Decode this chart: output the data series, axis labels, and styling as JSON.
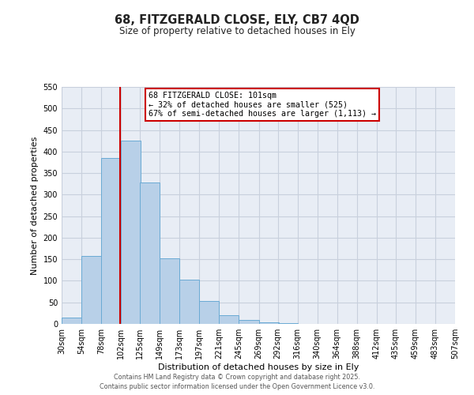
{
  "title_line1": "68, FITZGERALD CLOSE, ELY, CB7 4QD",
  "title_line2": "Size of property relative to detached houses in Ely",
  "bar_left_edges": [
    30,
    54,
    78,
    102,
    125,
    149,
    173,
    197,
    221,
    245,
    269,
    292,
    316,
    340,
    364,
    388,
    412,
    435,
    459,
    483
  ],
  "bar_heights": [
    15,
    157,
    385,
    425,
    328,
    152,
    102,
    54,
    20,
    10,
    3,
    1,
    0,
    0,
    0,
    0,
    0,
    0,
    0,
    0
  ],
  "bin_width": 24,
  "tick_labels": [
    "30sqm",
    "54sqm",
    "78sqm",
    "102sqm",
    "125sqm",
    "149sqm",
    "173sqm",
    "197sqm",
    "221sqm",
    "245sqm",
    "269sqm",
    "292sqm",
    "316sqm",
    "340sqm",
    "364sqm",
    "388sqm",
    "412sqm",
    "435sqm",
    "459sqm",
    "483sqm",
    "507sqm"
  ],
  "tick_positions": [
    30,
    54,
    78,
    102,
    125,
    149,
    173,
    197,
    221,
    245,
    269,
    292,
    316,
    340,
    364,
    388,
    412,
    435,
    459,
    483,
    507
  ],
  "ylabel": "Number of detached properties",
  "xlabel": "Distribution of detached houses by size in Ely",
  "ylim": [
    0,
    550
  ],
  "yticks": [
    0,
    50,
    100,
    150,
    200,
    250,
    300,
    350,
    400,
    450,
    500,
    550
  ],
  "bar_color": "#b8d0e8",
  "bar_edge_color": "#6aaad4",
  "vline_x": 101,
  "vline_color": "#cc0000",
  "annotation_text": "68 FITZGERALD CLOSE: 101sqm\n← 32% of detached houses are smaller (525)\n67% of semi-detached houses are larger (1,113) →",
  "annotation_box_color": "#ffffff",
  "annotation_box_edge": "#cc0000",
  "footer_line1": "Contains HM Land Registry data © Crown copyright and database right 2025.",
  "footer_line2": "Contains public sector information licensed under the Open Government Licence v3.0.",
  "background_color": "#ffffff",
  "plot_bg_color": "#e8edf5",
  "grid_color": "#c8d0dd"
}
